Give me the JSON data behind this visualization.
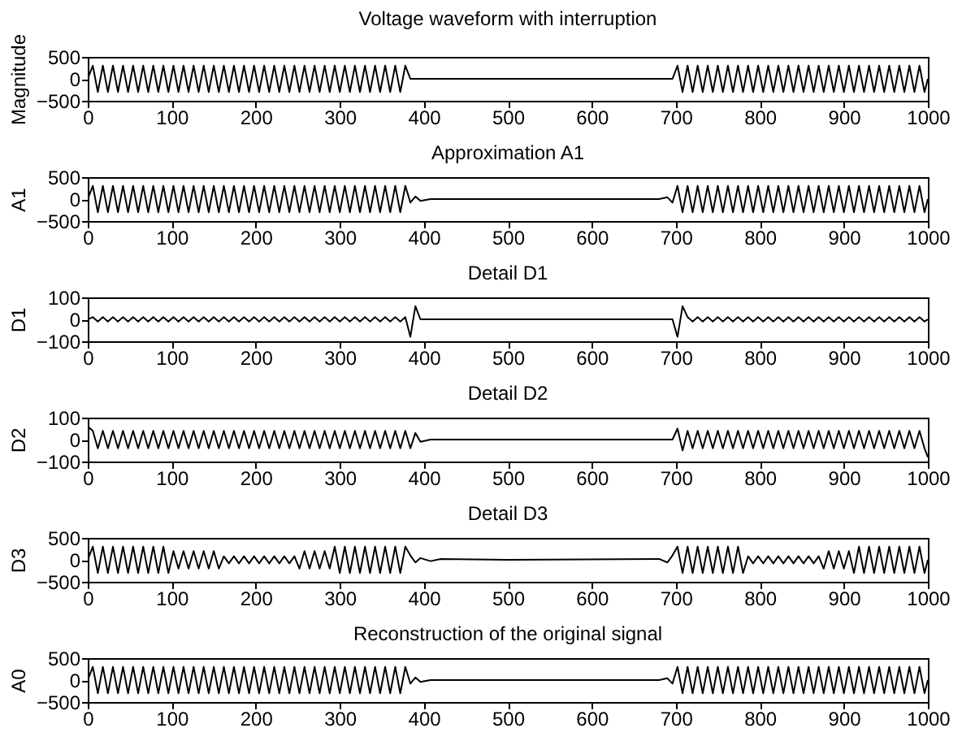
{
  "chart_data": [
    {
      "type": "line",
      "title": "Voltage waveform with interruption",
      "ylabel": "Magnitude",
      "xlim": [
        0,
        1000
      ],
      "xticks": [
        0,
        100,
        200,
        300,
        400,
        500,
        600,
        700,
        800,
        900,
        1000
      ],
      "ylim": [
        -500,
        500
      ],
      "yticks": [
        -500,
        0,
        500
      ],
      "x": [
        0,
        6,
        12,
        18,
        24,
        30,
        36,
        42,
        48,
        54,
        60,
        66,
        72,
        78,
        84,
        90,
        96,
        102,
        108,
        114,
        120,
        126,
        132,
        138,
        144,
        150,
        156,
        162,
        168,
        174,
        180,
        186,
        192,
        198,
        204,
        210,
        216,
        222,
        228,
        234,
        240,
        246,
        252,
        258,
        264,
        270,
        276,
        282,
        288,
        294,
        300,
        306,
        312,
        318,
        324,
        330,
        336,
        342,
        348,
        354,
        360,
        366,
        372,
        378,
        384,
        390,
        396,
        408,
        420,
        500,
        680,
        690,
        696,
        702,
        708,
        714,
        720,
        726,
        732,
        738,
        744,
        750,
        756,
        762,
        768,
        774,
        780,
        786,
        792,
        798,
        804,
        810,
        816,
        822,
        828,
        834,
        840,
        846,
        852,
        858,
        864,
        870,
        876,
        882,
        888,
        894,
        900,
        906,
        912,
        918,
        924,
        930,
        936,
        942,
        948,
        954,
        960,
        966,
        972,
        978,
        984,
        990,
        996,
        1000
      ],
      "series": [
        {
          "color": "#000000",
          "values": [
            0,
            300,
            -300,
            300,
            -300,
            300,
            -300,
            300,
            -300,
            300,
            -300,
            300,
            -300,
            300,
            -300,
            300,
            -300,
            300,
            -300,
            300,
            -300,
            300,
            -300,
            300,
            -300,
            300,
            -300,
            300,
            -300,
            300,
            -300,
            300,
            -300,
            300,
            -300,
            300,
            -300,
            300,
            -300,
            300,
            -300,
            300,
            -300,
            300,
            -300,
            300,
            -300,
            300,
            -300,
            300,
            -300,
            300,
            -300,
            300,
            -300,
            300,
            -300,
            300,
            -300,
            300,
            -300,
            300,
            -300,
            300,
            0,
            0,
            0,
            0,
            0,
            0,
            0,
            0,
            0,
            300,
            -300,
            300,
            -300,
            300,
            -300,
            300,
            -300,
            300,
            -300,
            300,
            -300,
            300,
            -300,
            300,
            -300,
            300,
            -300,
            300,
            -300,
            300,
            -300,
            300,
            -300,
            300,
            -300,
            300,
            -300,
            300,
            -300,
            300,
            -300,
            300,
            -300,
            300,
            -300,
            300,
            -300,
            300,
            -300,
            300,
            -300,
            300,
            -300,
            300,
            -300,
            300,
            -300,
            300,
            -300,
            0
          ]
        }
      ]
    },
    {
      "type": "line",
      "title": "Approximation A1",
      "ylabel": "A1",
      "xlim": [
        0,
        1000
      ],
      "xticks": [
        0,
        100,
        200,
        300,
        400,
        500,
        600,
        700,
        800,
        900,
        1000
      ],
      "ylim": [
        -500,
        500
      ],
      "yticks": [
        -500,
        0,
        500
      ],
      "x": [
        0,
        6,
        12,
        18,
        24,
        30,
        36,
        42,
        48,
        54,
        60,
        66,
        72,
        78,
        84,
        90,
        96,
        102,
        108,
        114,
        120,
        126,
        132,
        138,
        144,
        150,
        156,
        162,
        168,
        174,
        180,
        186,
        192,
        198,
        204,
        210,
        216,
        222,
        228,
        234,
        240,
        246,
        252,
        258,
        264,
        270,
        276,
        282,
        288,
        294,
        300,
        306,
        312,
        318,
        324,
        330,
        336,
        342,
        348,
        354,
        360,
        366,
        372,
        378,
        384,
        390,
        396,
        408,
        420,
        500,
        680,
        690,
        696,
        702,
        708,
        714,
        720,
        726,
        732,
        738,
        744,
        750,
        756,
        762,
        768,
        774,
        780,
        786,
        792,
        798,
        804,
        810,
        816,
        822,
        828,
        834,
        840,
        846,
        852,
        858,
        864,
        870,
        876,
        882,
        888,
        894,
        900,
        906,
        912,
        918,
        924,
        930,
        936,
        942,
        948,
        954,
        960,
        966,
        972,
        978,
        984,
        990,
        996,
        1000
      ],
      "series": [
        {
          "color": "#000000",
          "values": [
            0,
            300,
            -300,
            300,
            -300,
            300,
            -300,
            300,
            -300,
            300,
            -300,
            300,
            -300,
            300,
            -300,
            300,
            -300,
            300,
            -300,
            300,
            -300,
            300,
            -300,
            300,
            -300,
            300,
            -300,
            300,
            -300,
            300,
            -300,
            300,
            -300,
            300,
            -300,
            300,
            -300,
            300,
            -300,
            300,
            -300,
            300,
            -300,
            300,
            -300,
            300,
            -300,
            300,
            -300,
            300,
            -300,
            300,
            -300,
            300,
            -300,
            300,
            -300,
            300,
            -300,
            300,
            -300,
            300,
            -300,
            300,
            -80,
            60,
            -40,
            0,
            0,
            0,
            0,
            40,
            -80,
            300,
            -300,
            300,
            -300,
            300,
            -300,
            300,
            -300,
            300,
            -300,
            300,
            -300,
            300,
            -300,
            300,
            -300,
            300,
            -300,
            300,
            -300,
            300,
            -300,
            300,
            -300,
            300,
            -300,
            300,
            -300,
            300,
            -300,
            300,
            -300,
            300,
            -300,
            300,
            -300,
            300,
            -300,
            300,
            -300,
            300,
            -300,
            300,
            -300,
            300,
            -300,
            300,
            -300,
            300,
            -300,
            0
          ]
        }
      ]
    },
    {
      "type": "line",
      "title": "Detail D1",
      "ylabel": "D1",
      "xlim": [
        0,
        1000
      ],
      "xticks": [
        0,
        100,
        200,
        300,
        400,
        500,
        600,
        700,
        800,
        900,
        1000
      ],
      "ylim": [
        -100,
        100
      ],
      "yticks": [
        -100,
        0,
        100
      ],
      "x": [
        0,
        6,
        12,
        18,
        24,
        30,
        36,
        42,
        48,
        54,
        60,
        66,
        72,
        78,
        84,
        90,
        96,
        102,
        108,
        114,
        120,
        126,
        132,
        138,
        144,
        150,
        156,
        162,
        168,
        174,
        180,
        186,
        192,
        198,
        204,
        210,
        216,
        222,
        228,
        234,
        240,
        246,
        252,
        258,
        264,
        270,
        276,
        282,
        288,
        294,
        300,
        306,
        312,
        318,
        324,
        330,
        336,
        342,
        348,
        354,
        360,
        366,
        372,
        378,
        384,
        390,
        396,
        408,
        420,
        500,
        680,
        690,
        696,
        702,
        708,
        714,
        720,
        726,
        732,
        738,
        744,
        750,
        756,
        762,
        768,
        774,
        780,
        786,
        792,
        798,
        804,
        810,
        816,
        822,
        828,
        834,
        840,
        846,
        852,
        858,
        864,
        870,
        876,
        882,
        888,
        894,
        900,
        906,
        912,
        918,
        924,
        930,
        936,
        942,
        948,
        954,
        960,
        966,
        972,
        978,
        984,
        990,
        996,
        1000
      ],
      "series": [
        {
          "color": "#000000",
          "values": [
            0,
            10,
            -10,
            10,
            -10,
            10,
            -10,
            10,
            -10,
            10,
            -10,
            10,
            -10,
            10,
            -10,
            10,
            -10,
            10,
            -10,
            10,
            -10,
            10,
            -10,
            10,
            -10,
            10,
            -10,
            10,
            -10,
            10,
            -10,
            10,
            -10,
            10,
            -10,
            10,
            -10,
            10,
            -10,
            10,
            -10,
            10,
            -10,
            10,
            -10,
            10,
            -10,
            10,
            -10,
            10,
            -10,
            10,
            -10,
            10,
            -10,
            10,
            -10,
            10,
            -10,
            10,
            -10,
            10,
            -10,
            10,
            -80,
            60,
            0,
            0,
            0,
            0,
            0,
            0,
            0,
            -80,
            60,
            10,
            -10,
            10,
            -10,
            10,
            -10,
            10,
            -10,
            10,
            -10,
            10,
            -10,
            10,
            -10,
            10,
            -10,
            10,
            -10,
            10,
            -10,
            10,
            -10,
            10,
            -10,
            10,
            -10,
            10,
            -10,
            10,
            -10,
            10,
            -10,
            10,
            -10,
            10,
            -10,
            10,
            -10,
            10,
            -10,
            10,
            -10,
            10,
            -10,
            10,
            -10,
            10,
            -10,
            0
          ]
        }
      ]
    },
    {
      "type": "line",
      "title": "Detail D2",
      "ylabel": "D2",
      "xlim": [
        0,
        1000
      ],
      "xticks": [
        0,
        100,
        200,
        300,
        400,
        500,
        600,
        700,
        800,
        900,
        1000
      ],
      "ylim": [
        -100,
        100
      ],
      "yticks": [
        -100,
        0,
        100
      ],
      "x": [
        0,
        6,
        12,
        18,
        24,
        30,
        36,
        42,
        48,
        54,
        60,
        66,
        72,
        78,
        84,
        90,
        96,
        102,
        108,
        114,
        120,
        126,
        132,
        138,
        144,
        150,
        156,
        162,
        168,
        174,
        180,
        186,
        192,
        198,
        204,
        210,
        216,
        222,
        228,
        234,
        240,
        246,
        252,
        258,
        264,
        270,
        276,
        282,
        288,
        294,
        300,
        306,
        312,
        318,
        324,
        330,
        336,
        342,
        348,
        354,
        360,
        366,
        372,
        378,
        384,
        390,
        396,
        408,
        420,
        500,
        680,
        690,
        696,
        702,
        708,
        714,
        720,
        726,
        732,
        738,
        744,
        750,
        756,
        762,
        768,
        774,
        780,
        786,
        792,
        798,
        804,
        810,
        816,
        822,
        828,
        834,
        840,
        846,
        852,
        858,
        864,
        870,
        876,
        882,
        888,
        894,
        900,
        906,
        912,
        918,
        924,
        930,
        936,
        942,
        948,
        954,
        960,
        966,
        972,
        978,
        984,
        990,
        996,
        1000
      ],
      "series": [
        {
          "color": "#000000",
          "values": [
            60,
            40,
            -40,
            40,
            -40,
            40,
            -40,
            40,
            -40,
            40,
            -40,
            40,
            -40,
            40,
            -40,
            40,
            -40,
            40,
            -40,
            40,
            -40,
            40,
            -40,
            40,
            -40,
            40,
            -40,
            40,
            -40,
            40,
            -40,
            40,
            -40,
            40,
            -40,
            40,
            -40,
            40,
            -40,
            40,
            -40,
            40,
            -40,
            40,
            -40,
            40,
            -40,
            40,
            -40,
            40,
            -40,
            40,
            -40,
            40,
            -40,
            40,
            -40,
            40,
            -40,
            40,
            -40,
            40,
            -40,
            40,
            -40,
            30,
            -10,
            0,
            0,
            0,
            0,
            0,
            0,
            50,
            -50,
            40,
            -40,
            40,
            -40,
            40,
            -40,
            40,
            -40,
            40,
            -40,
            40,
            -40,
            40,
            -40,
            40,
            -40,
            40,
            -40,
            40,
            -40,
            40,
            -40,
            40,
            -40,
            40,
            -40,
            40,
            -40,
            40,
            -40,
            40,
            -40,
            40,
            -40,
            40,
            -40,
            40,
            -40,
            40,
            -40,
            40,
            -40,
            40,
            -40,
            40,
            -40,
            40,
            -40,
            -80
          ]
        }
      ]
    },
    {
      "type": "line",
      "title": "Detail D3",
      "ylabel": "D3",
      "xlim": [
        0,
        1000
      ],
      "xticks": [
        0,
        100,
        200,
        300,
        400,
        500,
        600,
        700,
        800,
        900,
        1000
      ],
      "ylim": [
        -500,
        500
      ],
      "yticks": [
        -500,
        0,
        500
      ],
      "x": [
        0,
        6,
        12,
        18,
        24,
        30,
        36,
        42,
        48,
        54,
        60,
        66,
        72,
        78,
        84,
        90,
        96,
        102,
        108,
        114,
        120,
        126,
        132,
        138,
        144,
        150,
        156,
        162,
        168,
        174,
        180,
        186,
        192,
        198,
        204,
        210,
        216,
        222,
        228,
        234,
        240,
        246,
        252,
        258,
        264,
        270,
        276,
        282,
        288,
        294,
        300,
        306,
        312,
        318,
        324,
        330,
        336,
        342,
        348,
        354,
        360,
        366,
        372,
        378,
        384,
        390,
        396,
        408,
        420,
        500,
        680,
        690,
        696,
        702,
        708,
        714,
        720,
        726,
        732,
        738,
        744,
        750,
        756,
        762,
        768,
        774,
        780,
        786,
        792,
        798,
        804,
        810,
        816,
        822,
        828,
        834,
        840,
        846,
        852,
        858,
        864,
        870,
        876,
        882,
        888,
        894,
        900,
        906,
        912,
        918,
        924,
        930,
        936,
        942,
        948,
        954,
        960,
        966,
        972,
        978,
        984,
        990,
        996,
        1000
      ],
      "series": [
        {
          "color": "#000000",
          "values": [
            0,
            300,
            -300,
            300,
            -300,
            300,
            -300,
            300,
            -300,
            300,
            -300,
            300,
            -300,
            300,
            -300,
            300,
            -300,
            200,
            -200,
            200,
            -200,
            200,
            -200,
            200,
            -200,
            200,
            -200,
            80,
            -80,
            80,
            -80,
            80,
            -80,
            80,
            -80,
            80,
            -80,
            80,
            -80,
            80,
            -80,
            80,
            -200,
            200,
            -200,
            200,
            -200,
            200,
            -200,
            300,
            -300,
            300,
            -300,
            300,
            -300,
            300,
            -300,
            300,
            -300,
            300,
            -300,
            300,
            -300,
            300,
            100,
            -60,
            40,
            -30,
            20,
            0,
            20,
            -60,
            100,
            300,
            -300,
            300,
            -300,
            300,
            -300,
            300,
            -300,
            300,
            -300,
            300,
            -300,
            300,
            -300,
            80,
            -80,
            80,
            -80,
            80,
            -80,
            80,
            -80,
            80,
            -80,
            80,
            -80,
            80,
            -80,
            80,
            -200,
            200,
            -200,
            200,
            -200,
            200,
            -300,
            300,
            -300,
            300,
            -300,
            300,
            -300,
            300,
            -300,
            300,
            -300,
            300,
            -300,
            300,
            -300,
            0
          ]
        }
      ]
    },
    {
      "type": "line",
      "title": "Reconstruction of the original signal",
      "ylabel": "A0",
      "xlim": [
        0,
        1000
      ],
      "xticks": [
        0,
        100,
        200,
        300,
        400,
        500,
        600,
        700,
        800,
        900,
        1000
      ],
      "ylim": [
        -500,
        500
      ],
      "yticks": [
        -500,
        0,
        500
      ],
      "x": [
        0,
        6,
        12,
        18,
        24,
        30,
        36,
        42,
        48,
        54,
        60,
        66,
        72,
        78,
        84,
        90,
        96,
        102,
        108,
        114,
        120,
        126,
        132,
        138,
        144,
        150,
        156,
        162,
        168,
        174,
        180,
        186,
        192,
        198,
        204,
        210,
        216,
        222,
        228,
        234,
        240,
        246,
        252,
        258,
        264,
        270,
        276,
        282,
        288,
        294,
        300,
        306,
        312,
        318,
        324,
        330,
        336,
        342,
        348,
        354,
        360,
        366,
        372,
        378,
        384,
        390,
        396,
        408,
        420,
        500,
        680,
        690,
        696,
        702,
        708,
        714,
        720,
        726,
        732,
        738,
        744,
        750,
        756,
        762,
        768,
        774,
        780,
        786,
        792,
        798,
        804,
        810,
        816,
        822,
        828,
        834,
        840,
        846,
        852,
        858,
        864,
        870,
        876,
        882,
        888,
        894,
        900,
        906,
        912,
        918,
        924,
        930,
        936,
        942,
        948,
        954,
        960,
        966,
        972,
        978,
        984,
        990,
        996,
        1000
      ],
      "series": [
        {
          "color": "#000000",
          "values": [
            0,
            300,
            -300,
            300,
            -300,
            300,
            -300,
            300,
            -300,
            300,
            -300,
            300,
            -300,
            300,
            -300,
            300,
            -300,
            300,
            -300,
            300,
            -300,
            300,
            -300,
            300,
            -300,
            300,
            -300,
            300,
            -300,
            300,
            -300,
            300,
            -300,
            300,
            -300,
            300,
            -300,
            300,
            -300,
            300,
            -300,
            300,
            -300,
            300,
            -300,
            300,
            -300,
            300,
            -300,
            300,
            -300,
            300,
            -300,
            300,
            -300,
            300,
            -300,
            300,
            -300,
            300,
            -300,
            300,
            -300,
            300,
            -80,
            60,
            -40,
            0,
            0,
            0,
            0,
            40,
            -80,
            300,
            -300,
            300,
            -300,
            300,
            -300,
            300,
            -300,
            300,
            -300,
            300,
            -300,
            300,
            -300,
            300,
            -300,
            300,
            -300,
            300,
            -300,
            300,
            -300,
            300,
            -300,
            300,
            -300,
            300,
            -300,
            300,
            -300,
            300,
            -300,
            300,
            -300,
            300,
            -300,
            300,
            -300,
            300,
            -300,
            300,
            -300,
            300,
            -300,
            300,
            -300,
            300,
            -300,
            300,
            -300,
            0
          ]
        }
      ]
    }
  ]
}
